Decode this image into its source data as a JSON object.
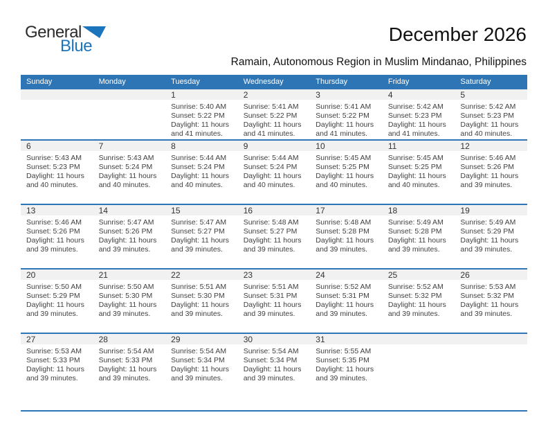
{
  "logo": {
    "part1": "General",
    "part2": "Blue"
  },
  "header": {
    "title": "December 2026",
    "subtitle": "Ramain, Autonomous Region in Muslim Mindanao, Philippines"
  },
  "labels": {
    "sunrise": "Sunrise:",
    "sunset": "Sunset:",
    "daylight": "Daylight:"
  },
  "colors": {
    "header_blue": "#2e75b6",
    "logo_blue": "#1b75bc",
    "day_strip_gray": "#f1f1f1"
  },
  "calendar": {
    "day_headers": [
      "Sunday",
      "Monday",
      "Tuesday",
      "Wednesday",
      "Thursday",
      "Friday",
      "Saturday"
    ],
    "weeks": [
      [
        null,
        null,
        {
          "day": "1",
          "sunrise": "5:40 AM",
          "sunset": "5:22 PM",
          "daylight": "11 hours and 41 minutes."
        },
        {
          "day": "2",
          "sunrise": "5:41 AM",
          "sunset": "5:22 PM",
          "daylight": "11 hours and 41 minutes."
        },
        {
          "day": "3",
          "sunrise": "5:41 AM",
          "sunset": "5:22 PM",
          "daylight": "11 hours and 41 minutes."
        },
        {
          "day": "4",
          "sunrise": "5:42 AM",
          "sunset": "5:23 PM",
          "daylight": "11 hours and 41 minutes."
        },
        {
          "day": "5",
          "sunrise": "5:42 AM",
          "sunset": "5:23 PM",
          "daylight": "11 hours and 40 minutes."
        }
      ],
      [
        {
          "day": "6",
          "sunrise": "5:43 AM",
          "sunset": "5:23 PM",
          "daylight": "11 hours and 40 minutes."
        },
        {
          "day": "7",
          "sunrise": "5:43 AM",
          "sunset": "5:24 PM",
          "daylight": "11 hours and 40 minutes."
        },
        {
          "day": "8",
          "sunrise": "5:44 AM",
          "sunset": "5:24 PM",
          "daylight": "11 hours and 40 minutes."
        },
        {
          "day": "9",
          "sunrise": "5:44 AM",
          "sunset": "5:24 PM",
          "daylight": "11 hours and 40 minutes."
        },
        {
          "day": "10",
          "sunrise": "5:45 AM",
          "sunset": "5:25 PM",
          "daylight": "11 hours and 40 minutes."
        },
        {
          "day": "11",
          "sunrise": "5:45 AM",
          "sunset": "5:25 PM",
          "daylight": "11 hours and 40 minutes."
        },
        {
          "day": "12",
          "sunrise": "5:46 AM",
          "sunset": "5:26 PM",
          "daylight": "11 hours and 39 minutes."
        }
      ],
      [
        {
          "day": "13",
          "sunrise": "5:46 AM",
          "sunset": "5:26 PM",
          "daylight": "11 hours and 39 minutes."
        },
        {
          "day": "14",
          "sunrise": "5:47 AM",
          "sunset": "5:26 PM",
          "daylight": "11 hours and 39 minutes."
        },
        {
          "day": "15",
          "sunrise": "5:47 AM",
          "sunset": "5:27 PM",
          "daylight": "11 hours and 39 minutes."
        },
        {
          "day": "16",
          "sunrise": "5:48 AM",
          "sunset": "5:27 PM",
          "daylight": "11 hours and 39 minutes."
        },
        {
          "day": "17",
          "sunrise": "5:48 AM",
          "sunset": "5:28 PM",
          "daylight": "11 hours and 39 minutes."
        },
        {
          "day": "18",
          "sunrise": "5:49 AM",
          "sunset": "5:28 PM",
          "daylight": "11 hours and 39 minutes."
        },
        {
          "day": "19",
          "sunrise": "5:49 AM",
          "sunset": "5:29 PM",
          "daylight": "11 hours and 39 minutes."
        }
      ],
      [
        {
          "day": "20",
          "sunrise": "5:50 AM",
          "sunset": "5:29 PM",
          "daylight": "11 hours and 39 minutes."
        },
        {
          "day": "21",
          "sunrise": "5:50 AM",
          "sunset": "5:30 PM",
          "daylight": "11 hours and 39 minutes."
        },
        {
          "day": "22",
          "sunrise": "5:51 AM",
          "sunset": "5:30 PM",
          "daylight": "11 hours and 39 minutes."
        },
        {
          "day": "23",
          "sunrise": "5:51 AM",
          "sunset": "5:31 PM",
          "daylight": "11 hours and 39 minutes."
        },
        {
          "day": "24",
          "sunrise": "5:52 AM",
          "sunset": "5:31 PM",
          "daylight": "11 hours and 39 minutes."
        },
        {
          "day": "25",
          "sunrise": "5:52 AM",
          "sunset": "5:32 PM",
          "daylight": "11 hours and 39 minutes."
        },
        {
          "day": "26",
          "sunrise": "5:53 AM",
          "sunset": "5:32 PM",
          "daylight": "11 hours and 39 minutes."
        }
      ],
      [
        {
          "day": "27",
          "sunrise": "5:53 AM",
          "sunset": "5:33 PM",
          "daylight": "11 hours and 39 minutes."
        },
        {
          "day": "28",
          "sunrise": "5:54 AM",
          "sunset": "5:33 PM",
          "daylight": "11 hours and 39 minutes."
        },
        {
          "day": "29",
          "sunrise": "5:54 AM",
          "sunset": "5:34 PM",
          "daylight": "11 hours and 39 minutes."
        },
        {
          "day": "30",
          "sunrise": "5:54 AM",
          "sunset": "5:34 PM",
          "daylight": "11 hours and 39 minutes."
        },
        {
          "day": "31",
          "sunrise": "5:55 AM",
          "sunset": "5:35 PM",
          "daylight": "11 hours and 39 minutes."
        },
        null,
        null
      ]
    ]
  }
}
